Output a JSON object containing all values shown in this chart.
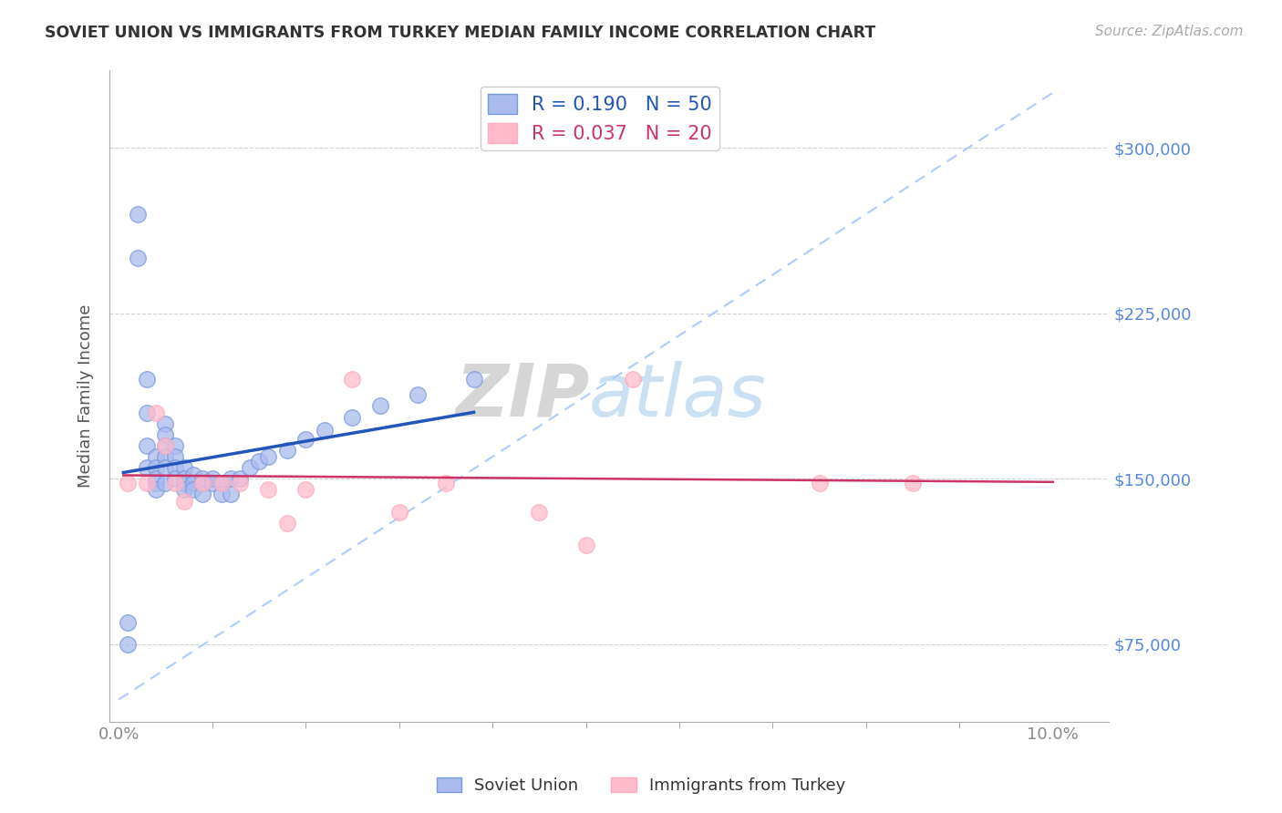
{
  "title": "SOVIET UNION VS IMMIGRANTS FROM TURKEY MEDIAN FAMILY INCOME CORRELATION CHART",
  "source": "Source: ZipAtlas.com",
  "ylabel": "Median Family Income",
  "x_tick_labels_ends": [
    "0.0%",
    "10.0%"
  ],
  "y_ticks": [
    75000,
    150000,
    225000,
    300000
  ],
  "y_tick_labels": [
    "$75,000",
    "$150,000",
    "$225,000",
    "$300,000"
  ],
  "xlim": [
    -0.001,
    0.106
  ],
  "ylim": [
    40000,
    335000
  ],
  "background_color": "#ffffff",
  "legend_r_entries": [
    {
      "label_r": "R = 0.190",
      "label_n": "N = 50",
      "color": "#6699ff"
    },
    {
      "label_r": "R = 0.037",
      "label_n": "N = 20",
      "color": "#ff99bb"
    }
  ],
  "soviet_union_x": [
    0.001,
    0.001,
    0.002,
    0.002,
    0.003,
    0.003,
    0.003,
    0.003,
    0.004,
    0.004,
    0.004,
    0.004,
    0.004,
    0.005,
    0.005,
    0.005,
    0.005,
    0.005,
    0.005,
    0.006,
    0.006,
    0.006,
    0.006,
    0.007,
    0.007,
    0.007,
    0.007,
    0.008,
    0.008,
    0.008,
    0.009,
    0.009,
    0.009,
    0.01,
    0.01,
    0.011,
    0.011,
    0.012,
    0.012,
    0.013,
    0.014,
    0.015,
    0.016,
    0.018,
    0.02,
    0.022,
    0.025,
    0.028,
    0.032,
    0.038
  ],
  "soviet_union_y": [
    85000,
    75000,
    270000,
    250000,
    195000,
    180000,
    165000,
    155000,
    160000,
    155000,
    150000,
    148000,
    145000,
    175000,
    170000,
    165000,
    160000,
    155000,
    148000,
    165000,
    160000,
    155000,
    150000,
    155000,
    150000,
    148000,
    145000,
    152000,
    148000,
    145000,
    150000,
    148000,
    143000,
    150000,
    148000,
    148000,
    143000,
    150000,
    143000,
    150000,
    155000,
    158000,
    160000,
    163000,
    168000,
    172000,
    178000,
    183000,
    188000,
    195000
  ],
  "turkey_x": [
    0.001,
    0.003,
    0.004,
    0.005,
    0.006,
    0.007,
    0.009,
    0.011,
    0.013,
    0.016,
    0.018,
    0.02,
    0.025,
    0.03,
    0.035,
    0.045,
    0.05,
    0.055,
    0.075,
    0.085
  ],
  "turkey_y": [
    148000,
    148000,
    180000,
    165000,
    148000,
    140000,
    148000,
    148000,
    148000,
    145000,
    130000,
    145000,
    195000,
    135000,
    148000,
    135000,
    120000,
    195000,
    148000,
    148000
  ],
  "blue_line_color": "#2255bb",
  "pink_line_color": "#cc3366",
  "dashed_line_color": "#aaccff",
  "dot_blue_fill": "#aabbee",
  "dot_blue_edge": "#7799dd",
  "dot_pink_fill": "#ffbbcc",
  "dot_pink_edge": "#ffaabb",
  "grid_color": "#cccccc",
  "title_color": "#333333",
  "axis_label_color": "#555555",
  "ytick_color": "#5588dd",
  "xtick_color": "#888888",
  "minor_tick_x": [
    0.01,
    0.02,
    0.03,
    0.04,
    0.05,
    0.06,
    0.07,
    0.08,
    0.09
  ]
}
